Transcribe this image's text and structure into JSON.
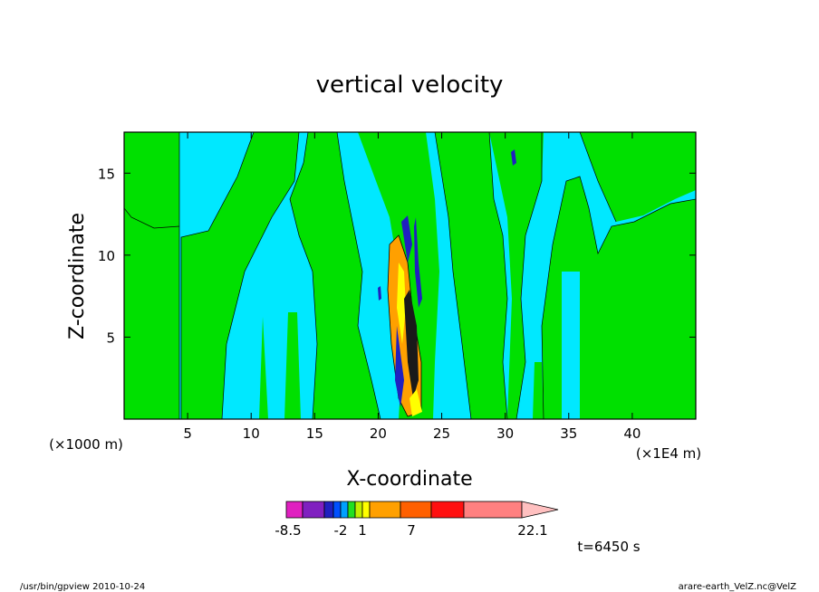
{
  "chart_data": {
    "type": "heatmap",
    "title": "vertical velocity",
    "xlabel": "X-coordinate",
    "ylabel": "Z-coordinate",
    "x_unit_left": "(×1000 m)",
    "x_unit_right": "(×1E4 m)",
    "x_ticks": [
      5,
      10,
      15,
      20,
      25,
      30,
      35,
      40
    ],
    "y_ticks": [
      5,
      10,
      15
    ],
    "xlim": [
      0,
      45
    ],
    "ylim": [
      0,
      17.5
    ],
    "colorbar": {
      "colors": [
        "#e020c0",
        "#8020c0",
        "#2020c0",
        "#0050ff",
        "#00a0ff",
        "#20e020",
        "#c0f000",
        "#ffff00",
        "#ffa000",
        "#ff6000",
        "#ff1010",
        "#ff8080",
        "#ffc0c0"
      ],
      "tick_labels": [
        "-8.5",
        "-2",
        "1",
        "7",
        "22.1"
      ],
      "tick_values": [
        -8.5,
        -2,
        1,
        7,
        22.1
      ]
    },
    "field_colors": {
      "background_positive": "#00e000",
      "background_negative": "#00e8ff",
      "updraft_core": "#ffa000",
      "updraft_peak": "#ffff00",
      "downdraft": "#2020c0"
    }
  },
  "annotations": {
    "time_label": "t=6450 s",
    "footer_left": "/usr/bin/gpview  2010-10-24",
    "footer_right": "arare-earth_VelZ.nc@VelZ"
  }
}
